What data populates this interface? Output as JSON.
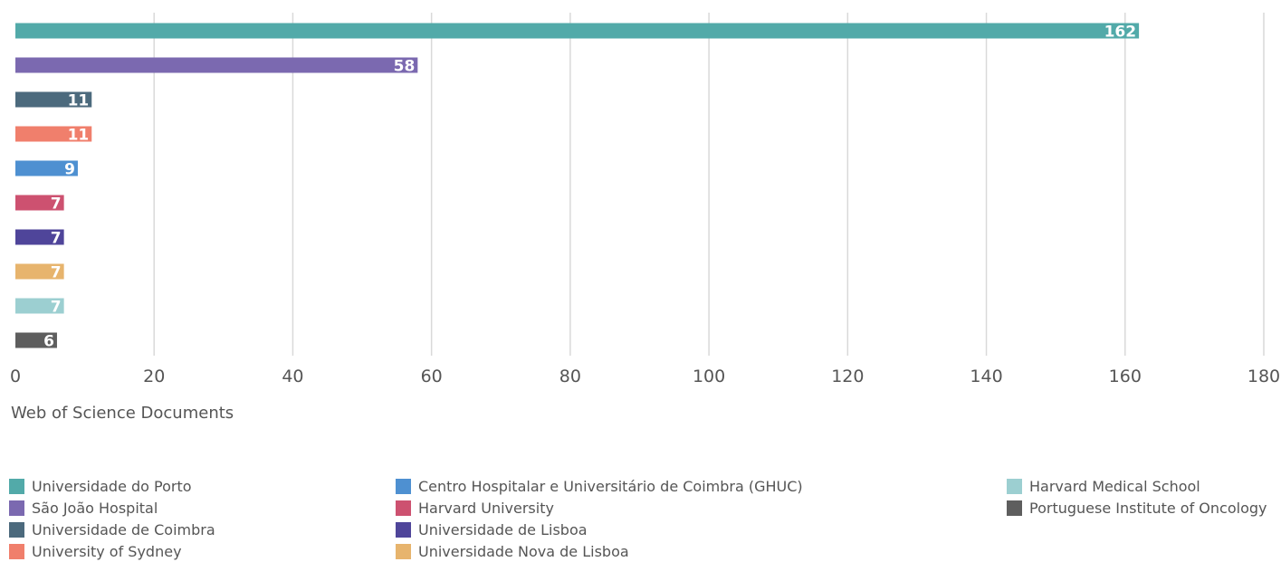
{
  "chart_data": {
    "type": "bar",
    "orientation": "horizontal",
    "categories": [
      "Universidade do Porto",
      "São João Hospital",
      "Universidade de Coimbra",
      "University of Sydney",
      "Centro Hospitalar e Universitário de Coimbra (GHUC)",
      "Harvard University",
      "Universidade de Lisboa",
      "Universidade Nova de Lisboa",
      "Harvard Medical School",
      "Portuguese Institute of Oncology"
    ],
    "values": [
      162,
      58,
      11,
      11,
      9,
      7,
      7,
      7,
      7,
      6
    ],
    "colors": [
      "#52aaa9",
      "#7b69b0",
      "#4c6a7d",
      "#f07f6c",
      "#4e90d1",
      "#cd5170",
      "#4f459a",
      "#e7b46d",
      "#9ccfd1",
      "#5e5e5e"
    ],
    "xlabel": "Web of Science Documents",
    "xlim": [
      0,
      180
    ],
    "xticks": [
      0,
      20,
      40,
      60,
      80,
      100,
      120,
      140,
      160,
      180
    ],
    "grid": true,
    "legend": "bottom",
    "data_labels": true
  }
}
